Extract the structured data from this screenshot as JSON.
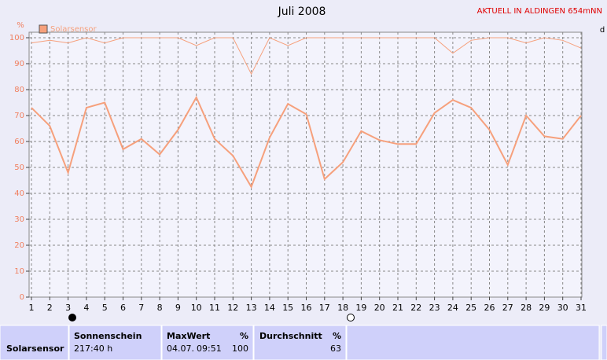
{
  "chart_data": {
    "type": "line",
    "title": "Juli 2008",
    "ylabel": "%",
    "y2label": "d",
    "x": [
      1,
      2,
      3,
      4,
      5,
      6,
      7,
      8,
      9,
      10,
      11,
      12,
      13,
      14,
      15,
      16,
      17,
      18,
      19,
      20,
      21,
      22,
      23,
      24,
      25,
      26,
      27,
      28,
      29,
      30,
      31
    ],
    "series": [
      {
        "name": "Solarsensor",
        "color": "#f6a07c",
        "width": 2,
        "values": [
          73,
          66,
          48,
          73,
          75,
          57,
          61,
          55,
          64.5,
          77,
          61,
          54.5,
          42.5,
          61.5,
          74.5,
          70.5,
          45.5,
          52,
          64,
          60.5,
          59,
          59,
          71,
          76,
          73,
          64.5,
          51,
          70,
          62,
          61,
          70
        ]
      },
      {
        "color": "#f6a07c",
        "width": 1,
        "values": [
          98,
          99,
          98,
          100,
          98,
          100,
          100,
          100,
          100,
          97,
          100,
          100,
          86,
          100,
          97,
          100,
          100,
          100,
          100,
          100,
          100,
          100,
          100,
          94,
          99,
          100,
          100,
          98,
          100,
          99,
          96
        ]
      }
    ],
    "xlim": [
      1,
      31
    ],
    "xticks": [
      1,
      2,
      3,
      4,
      5,
      6,
      7,
      8,
      9,
      10,
      11,
      12,
      13,
      14,
      15,
      16,
      17,
      18,
      19,
      20,
      21,
      22,
      23,
      24,
      25,
      26,
      27,
      28,
      29,
      30,
      31
    ],
    "ylim": [
      0,
      100
    ],
    "yticks": [
      0,
      10,
      20,
      30,
      40,
      50,
      60,
      70,
      80,
      90,
      100
    ],
    "grid": true,
    "legend": "top-left"
  },
  "station_label": "AKTUELL IN ALDINGEN 654mNN",
  "summary_table": {
    "row_label": "Solarsensor",
    "columns": [
      {
        "header": "Sonnenschein",
        "value": "217:40 h"
      },
      {
        "header": "MaxWert",
        "unit": "%",
        "date": "04.07.",
        "time": "09:51",
        "value": 100
      },
      {
        "header": "Durchschnitt",
        "unit": "%",
        "value": 63
      }
    ]
  }
}
